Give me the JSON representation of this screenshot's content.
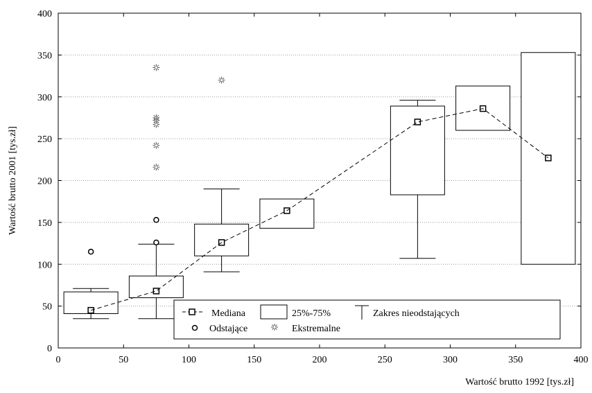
{
  "chart_data": {
    "type": "box",
    "xlabel": "Wartość brutto 1992 [tys.zł]",
    "ylabel": "Wartość brutto 2001 [tys.zł]",
    "xlim": [
      0,
      400
    ],
    "ylim": [
      0,
      400
    ],
    "x_ticks": [
      0,
      50,
      100,
      150,
      200,
      250,
      300,
      350,
      400
    ],
    "y_ticks": [
      0,
      50,
      100,
      150,
      200,
      250,
      300,
      350,
      400
    ],
    "grid": "horizontal-dotted",
    "legend_position": "bottom-center",
    "boxes": [
      {
        "x": 25,
        "q1": 41,
        "median": 45,
        "q3": 67,
        "whisker_low": 35,
        "whisker_high": 71,
        "outliers": [
          115
        ],
        "extremes": []
      },
      {
        "x": 75,
        "q1": 60,
        "median": 68,
        "q3": 86,
        "whisker_low": 35,
        "whisker_high": 124,
        "outliers": [
          126,
          153
        ],
        "extremes": [
          216,
          242,
          267,
          272,
          275,
          335
        ]
      },
      {
        "x": 125,
        "q1": 110,
        "median": 126,
        "q3": 148,
        "whisker_low": 91,
        "whisker_high": 190,
        "outliers": [],
        "extremes": [
          320
        ]
      },
      {
        "x": 175,
        "q1": 143,
        "median": 164,
        "q3": 178,
        "whisker_low": null,
        "whisker_high": null,
        "outliers": [],
        "extremes": []
      },
      {
        "x": 275,
        "q1": 183,
        "median": 270,
        "q3": 289,
        "whisker_low": 107,
        "whisker_high": 296,
        "outliers": [],
        "extremes": []
      },
      {
        "x": 325,
        "q1": 260,
        "median": 286,
        "q3": 313,
        "whisker_low": null,
        "whisker_high": null,
        "outliers": [],
        "extremes": []
      },
      {
        "x": 375,
        "q1": 100,
        "median": 227,
        "q3": 353,
        "whisker_low": null,
        "whisker_high": null,
        "outliers": [],
        "extremes": []
      }
    ],
    "legend": {
      "median": "Mediana",
      "box": "25%-75%",
      "whisker": "Zakres nieodstających",
      "outlier": "Odstające",
      "extreme": "Ekstremalne"
    }
  }
}
